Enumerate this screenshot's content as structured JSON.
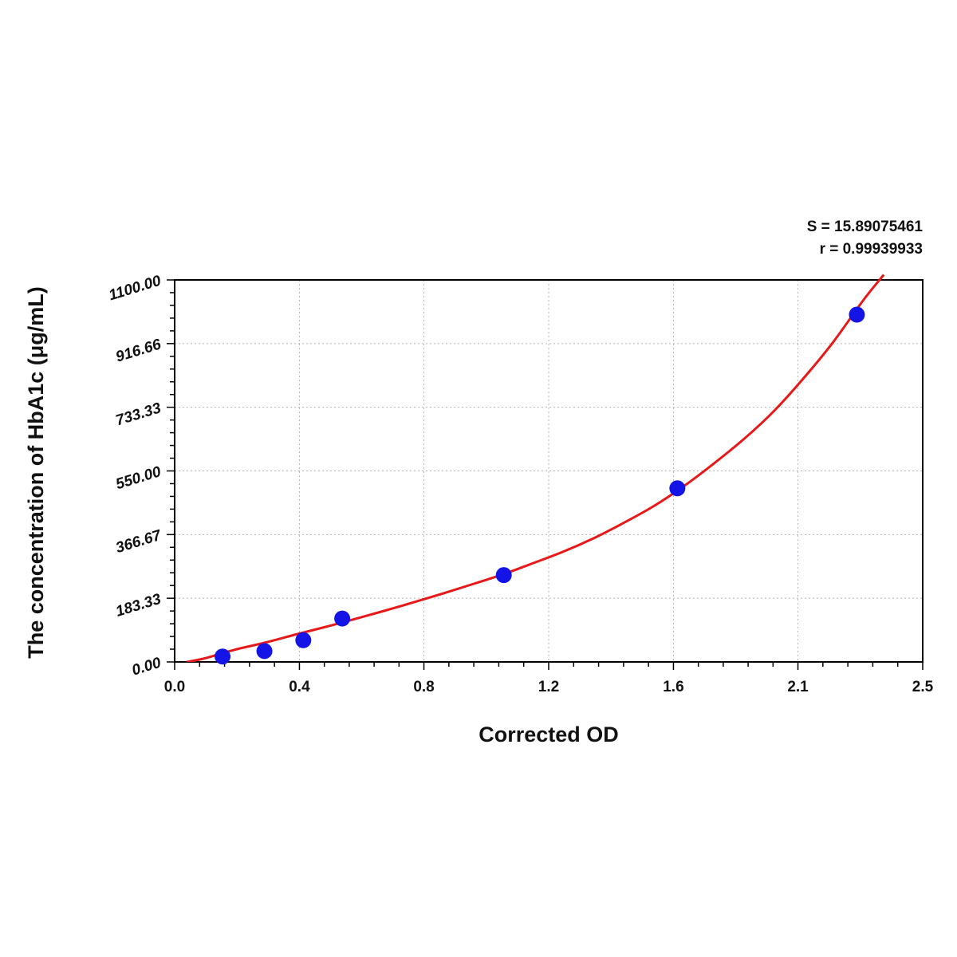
{
  "chart_data": {
    "type": "scatter",
    "xlabel": "Corrected OD",
    "ylabel": "The concentration of HbA1c (μg/mL)",
    "xlim": [
      0,
      2.5
    ],
    "ylim": [
      0,
      1100
    ],
    "x_ticks": [
      "0.0",
      "0.4",
      "0.8",
      "1.2",
      "1.6",
      "2.1",
      "2.5"
    ],
    "x_tick_values": [
      0,
      0.417,
      0.833,
      1.25,
      1.667,
      2.083,
      2.5
    ],
    "y_ticks": [
      "0.00",
      "183.33",
      "366.67",
      "550.00",
      "733.33",
      "916.66",
      "1100.00"
    ],
    "y_tick_values": [
      0,
      183.33,
      366.67,
      550,
      733.33,
      916.66,
      1100
    ],
    "grid": true,
    "stats": {
      "s": "S = 15.89075461",
      "r": "r = 0.99939933"
    },
    "series": [
      {
        "type": "scatter",
        "color": "#1414e6",
        "x": [
          0.16,
          0.3,
          0.43,
          0.56,
          1.1,
          1.68,
          2.28
        ],
        "y": [
          15.6,
          31.25,
          62.5,
          125,
          250,
          500,
          1000
        ]
      },
      {
        "type": "line",
        "color": "#e81818",
        "x": [
          0.04,
          0.1,
          0.2,
          0.3,
          0.4,
          0.5,
          0.6,
          0.7,
          0.8,
          0.9,
          1.0,
          1.1,
          1.2,
          1.3,
          1.4,
          1.5,
          1.6,
          1.7,
          1.8,
          1.9,
          2.0,
          2.1,
          2.2,
          2.3,
          2.37
        ],
        "y": [
          0,
          10,
          35,
          55,
          78,
          100,
          123,
          147,
          172,
          198,
          225,
          253,
          285,
          318,
          356,
          400,
          448,
          505,
          570,
          640,
          720,
          815,
          920,
          1040,
          1115
        ]
      }
    ]
  }
}
